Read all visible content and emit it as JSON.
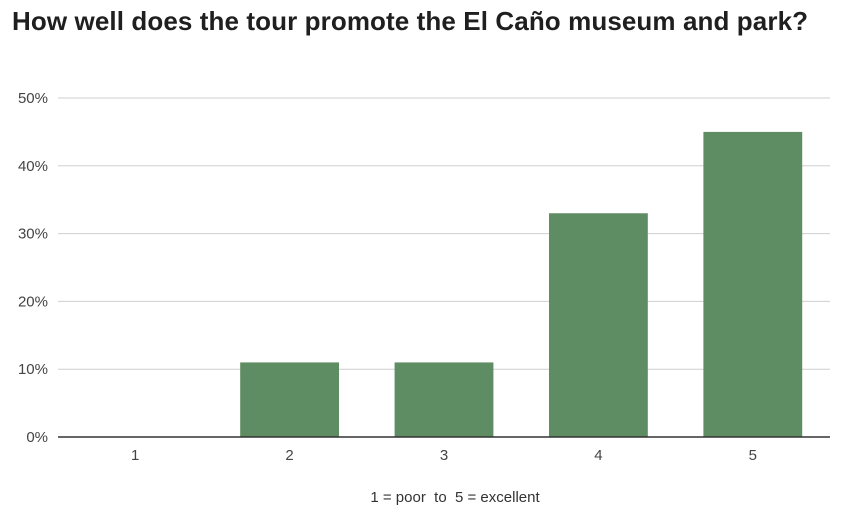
{
  "chart_data": {
    "type": "bar",
    "title": "How well does the tour promote the El Caño museum and park?",
    "categories": [
      "1",
      "2",
      "3",
      "4",
      "5"
    ],
    "values": [
      0,
      11,
      11,
      33,
      45
    ],
    "value_unit": "%",
    "xlabel": "1 = poor  to  5 = excellent",
    "ylabel": "",
    "ylim": [
      0,
      50
    ],
    "yticks": [
      "0%",
      "10%",
      "20%",
      "30%",
      "40%",
      "50%"
    ],
    "grid": true,
    "legend": "none",
    "bar_color": "#5f8d63"
  }
}
